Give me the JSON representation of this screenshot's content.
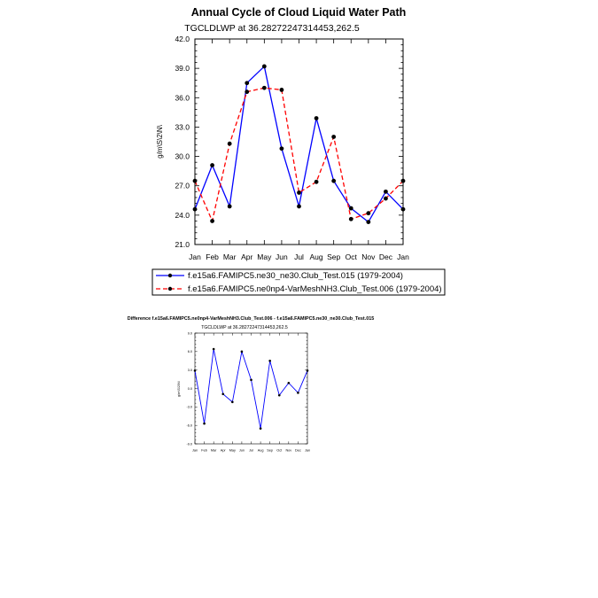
{
  "colors": {
    "series1": "#0000ff",
    "series2": "#ff0000",
    "marker": "#000000",
    "frame": "#000000",
    "background": "#ffffff"
  },
  "chart_data": [
    {
      "type": "line",
      "title": "Annual Cycle of Cloud Liquid Water Path",
      "subtitle": "TGCLDLWP at 36.28272247314453,262.5",
      "xlabel": "",
      "ylabel": "g/m\\S\\2\\N\\",
      "ylim": [
        21.0,
        42.0
      ],
      "yticks": [
        "21.0",
        "24.0",
        "27.0",
        "30.0",
        "33.0",
        "36.0",
        "39.0",
        "42.0"
      ],
      "categories": [
        "Jan",
        "Feb",
        "Mar",
        "Apr",
        "May",
        "Jun",
        "Jul",
        "Aug",
        "Sep",
        "Oct",
        "Nov",
        "Dec",
        "Jan"
      ],
      "series": [
        {
          "name": "f.e15a6.FAMIPC5.ne30_ne30.Club_Test.015 (1979-2004)",
          "style": "solid",
          "values": [
            24.6,
            29.1,
            24.9,
            37.5,
            39.2,
            30.8,
            24.9,
            33.9,
            27.5,
            24.7,
            23.3,
            26.4,
            24.6
          ]
        },
        {
          "name": "f.e15a6.FAMIPC5.ne0np4-VarMeshNH3.Club_Test.006 (1979-2004)",
          "style": "dashed",
          "values": [
            27.5,
            23.4,
            31.3,
            36.6,
            37.0,
            36.8,
            26.3,
            27.4,
            32.0,
            23.6,
            24.2,
            25.7,
            27.5
          ]
        }
      ],
      "grid": false
    },
    {
      "type": "line",
      "title": "Difference f.e15a6.FAMIPC5.ne0np4-VarMeshNH3.Club_Test.006 - f.e15a6.FAMIPC5.ne30_ne30.Club_Test.015",
      "subtitle": "TGCLDLWP at 36.28272247314453,262.5",
      "xlabel": "",
      "ylabel": "g/m\\S\\2\\N\\",
      "ylim": [
        -9.0,
        9.0
      ],
      "yticks": [
        "-9.0",
        "-6.0",
        "-3.0",
        "0.0",
        "3.0",
        "6.0",
        "9.0"
      ],
      "categories": [
        "Jan",
        "Feb",
        "Mar",
        "Apr",
        "May",
        "Jun",
        "Jul",
        "Aug",
        "Sep",
        "Oct",
        "Nov",
        "Dec",
        "Jan"
      ],
      "series": [
        {
          "name": "Difference",
          "style": "solid",
          "values": [
            2.9,
            -5.7,
            6.4,
            -0.9,
            -2.2,
            6.0,
            1.4,
            -6.5,
            4.5,
            -1.1,
            0.9,
            -0.7,
            2.9
          ]
        }
      ],
      "grid": false
    }
  ]
}
